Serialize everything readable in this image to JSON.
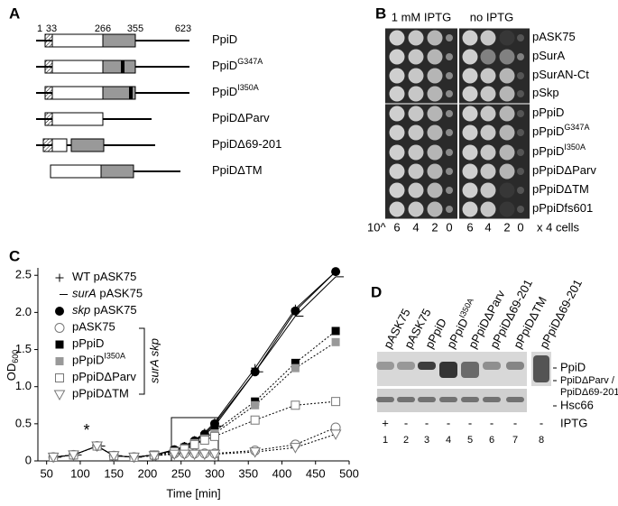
{
  "panel_a": {
    "letter": "A",
    "positions": [
      1,
      33,
      266,
      355,
      623
    ],
    "constructs": [
      {
        "name": "PpiD"
      },
      {
        "name": "PpiD",
        "sup": "G347A"
      },
      {
        "name": "PpiD",
        "sup": "I350A"
      },
      {
        "name": "PpiDΔParv"
      },
      {
        "name": "PpiDΔ69-201"
      },
      {
        "name": "PpiDΔTM"
      }
    ]
  },
  "panel_b": {
    "letter": "B",
    "conditions": [
      "1 mM IPTG",
      "no IPTG"
    ],
    "strains": [
      {
        "name": "pASK75"
      },
      {
        "name": "pSurA"
      },
      {
        "name": "pSurAN-Ct"
      },
      {
        "name": "pSkp"
      },
      {
        "name": "pPpiD"
      },
      {
        "name": "pPpiD",
        "sup": "G347A"
      },
      {
        "name": "pPpiD",
        "sup": "I350A"
      },
      {
        "name": "pPpiDΔParv"
      },
      {
        "name": "pPpiDΔTM"
      },
      {
        "name": "pPpiDfs601"
      }
    ],
    "dilution_prefix": "10^",
    "dilutions": [
      6,
      4,
      2,
      0,
      6,
      4,
      2,
      0
    ],
    "dilution_suffix": "x 4 cells"
  },
  "chart_data": {
    "type": "line",
    "letter": "C",
    "x_label": "Time [min]",
    "y_label": "OD",
    "y_label_sub": "600",
    "annotation": "*",
    "bracket_label": "surA skp",
    "x": [
      60,
      90,
      125,
      150,
      180,
      210,
      240,
      255,
      270,
      285,
      300,
      360,
      420,
      480
    ],
    "xlim": [
      37,
      500
    ],
    "xticks": [
      50,
      100,
      150,
      200,
      250,
      300,
      350,
      400,
      450,
      500
    ],
    "ylim": [
      0,
      2.6
    ],
    "yticks": [
      0,
      0.5,
      {
        "value": 1,
        "label": "1.0"
      },
      1.5,
      {
        "value": 2,
        "label": "2.0"
      },
      2.5
    ],
    "series": [
      {
        "strain": "WT",
        "name": "pASK75",
        "marker": "plus",
        "dash": "solid",
        "color": "#000000",
        "values": [
          0.05,
          0.08,
          0.2,
          0.07,
          0.05,
          0.08,
          0.15,
          0.2,
          0.28,
          0.38,
          0.52,
          1.25,
          2.05,
          2.55
        ]
      },
      {
        "strain": "surA",
        "italic": true,
        "name": "pASK75",
        "marker": "dash",
        "dash": "solid",
        "color": "#000000",
        "values": [
          0.05,
          0.08,
          0.2,
          0.07,
          0.05,
          0.08,
          0.14,
          0.18,
          0.26,
          0.35,
          0.47,
          1.2,
          1.95,
          2.48
        ]
      },
      {
        "strain": "skp",
        "italic": true,
        "name": "pASK75",
        "marker": "filled-circle",
        "dash": "solid",
        "color": "#000000",
        "values": [
          0.05,
          0.08,
          0.2,
          0.07,
          0.05,
          0.08,
          0.15,
          0.19,
          0.27,
          0.36,
          0.5,
          1.2,
          2.02,
          2.55
        ]
      },
      {
        "name": "pASK75",
        "marker": "open-circle",
        "dash": "dotted",
        "color": "#000000",
        "values": [
          0.05,
          0.08,
          0.2,
          0.07,
          0.05,
          0.07,
          0.1,
          0.1,
          0.1,
          0.1,
          0.1,
          0.14,
          0.22,
          0.45
        ]
      },
      {
        "name": "pPpiD",
        "marker": "filled-square",
        "dash": "dotted",
        "color": "#000000",
        "values": [
          0.05,
          0.08,
          0.2,
          0.07,
          0.05,
          0.08,
          0.14,
          0.18,
          0.25,
          0.32,
          0.4,
          0.8,
          1.32,
          1.75
        ]
      },
      {
        "name": "pPpiD",
        "sup": "I350A",
        "marker": "gray-square",
        "dash": "dotted",
        "color": "#000000",
        "values": [
          0.05,
          0.08,
          0.2,
          0.07,
          0.05,
          0.08,
          0.13,
          0.17,
          0.24,
          0.3,
          0.37,
          0.75,
          1.25,
          1.6
        ]
      },
      {
        "name": "pPpiDΔParv",
        "marker": "open-square",
        "dash": "dotted",
        "color": "#000000",
        "values": [
          0.05,
          0.08,
          0.2,
          0.07,
          0.05,
          0.08,
          0.12,
          0.16,
          0.22,
          0.28,
          0.33,
          0.55,
          0.75,
          0.8
        ]
      },
      {
        "name": "pPpiDΔTM",
        "marker": "open-triangle",
        "dash": "dotted",
        "color": "#000000",
        "values": [
          0.05,
          0.08,
          0.2,
          0.07,
          0.05,
          0.07,
          0.09,
          0.09,
          0.09,
          0.09,
          0.09,
          0.12,
          0.18,
          0.36
        ]
      }
    ]
  },
  "panel_d": {
    "letter": "D",
    "lanes": [
      {
        "name": "pASK75"
      },
      {
        "name": "pASK75"
      },
      {
        "name": "pPpiD"
      },
      {
        "name": "pPpiD",
        "sup": "I350A"
      },
      {
        "name": "pPpiDΔParv"
      },
      {
        "name": "pPpiDΔ69-201"
      },
      {
        "name": "pPpiDΔTM"
      },
      {
        "name": "pPpiDΔ69-201"
      }
    ],
    "band_labels": [
      "PpiD",
      "PpiDΔParv /",
      "PpiDΔ69-201",
      "Hsc66"
    ],
    "iptg": [
      "+",
      "-",
      "-",
      "-",
      "-",
      "-",
      "-",
      "-"
    ],
    "iptg_label": "IPTG",
    "lane_numbers": [
      1,
      2,
      3,
      4,
      5,
      6,
      7,
      8
    ]
  }
}
